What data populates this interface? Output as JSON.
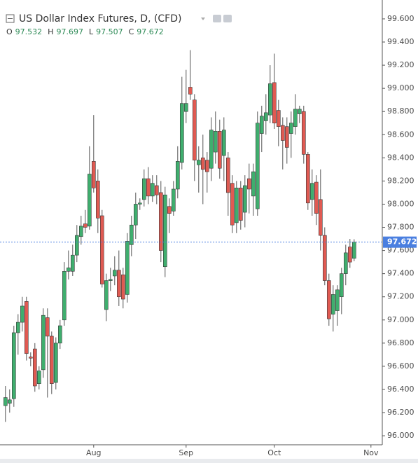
{
  "chart_data": {
    "type": "candlestick",
    "title": "US Dollar Index Futures, D, (CFD)",
    "ohlc_labels": [
      "O",
      "H",
      "L",
      "C"
    ],
    "open": [
      96.26,
      96.28,
      96.32,
      96.89,
      96.98,
      97.16,
      96.68,
      96.75,
      96.45,
      96.57,
      97.02,
      96.86,
      96.46,
      96.8,
      97.0,
      97.42,
      97.42,
      97.56,
      97.72,
      97.83,
      97.81,
      98.37,
      98.2,
      97.9,
      97.09,
      97.34,
      97.38,
      97.43,
      97.39,
      97.22,
      97.65,
      97.82,
      98.0,
      98.04,
      98.22,
      98.07,
      98.16,
      98.1,
      97.46,
      97.98,
      97.94,
      98.13,
      98.36,
      98.8,
      99.01,
      98.9,
      98.34,
      98.4,
      98.38,
      98.31,
      98.45,
      98.63,
      98.42,
      98.4,
      98.18,
      97.84,
      98.14,
      97.93,
      98.22,
      98.07,
      97.96,
      98.61,
      98.72,
      98.77,
      99.05,
      98.81,
      98.68,
      98.67,
      98.61,
      98.67,
      98.78,
      98.8,
      98.43,
      98.04,
      98.19,
      98.04,
      97.73,
      97.34,
      97.05,
      97.08,
      97.2,
      97.4,
      97.63,
      97.532
    ],
    "high": [
      96.43,
      96.4,
      96.95,
      97.05,
      97.2,
      97.2,
      96.72,
      96.8,
      96.6,
      97.1,
      97.1,
      96.9,
      96.85,
      97.0,
      97.5,
      97.6,
      97.65,
      97.82,
      97.9,
      97.95,
      98.5,
      98.77,
      98.3,
      97.95,
      97.4,
      97.45,
      97.55,
      97.6,
      97.45,
      97.75,
      97.9,
      98.1,
      98.05,
      98.3,
      98.32,
      98.25,
      98.25,
      98.2,
      98.15,
      98.05,
      98.2,
      98.5,
      99.1,
      99.16,
      99.33,
      98.95,
      98.5,
      98.6,
      98.45,
      98.75,
      98.8,
      98.73,
      98.75,
      98.45,
      98.25,
      98.2,
      98.2,
      98.25,
      98.35,
      98.35,
      98.8,
      98.85,
      98.95,
      99.2,
      99.3,
      98.9,
      98.75,
      98.75,
      98.8,
      98.95,
      98.85,
      98.85,
      98.45,
      98.3,
      98.25,
      98.3,
      97.8,
      97.4,
      97.3,
      97.3,
      97.45,
      97.65,
      97.7,
      97.697
    ],
    "low": [
      96.12,
      96.2,
      96.25,
      96.7,
      96.9,
      96.65,
      96.6,
      96.38,
      96.4,
      96.5,
      96.33,
      96.36,
      96.4,
      96.75,
      96.95,
      97.35,
      97.38,
      97.5,
      97.65,
      97.75,
      97.78,
      98.1,
      97.75,
      97.28,
      96.99,
      97.25,
      97.3,
      97.12,
      97.1,
      97.15,
      97.55,
      97.7,
      97.95,
      97.98,
      98.0,
      98.02,
      98.0,
      97.5,
      97.37,
      97.75,
      97.9,
      98.05,
      98.3,
      98.7,
      98.9,
      98.2,
      98.1,
      98.0,
      98.1,
      98.2,
      98.35,
      98.22,
      98.2,
      97.9,
      97.75,
      97.75,
      97.78,
      97.8,
      97.92,
      97.9,
      97.9,
      98.45,
      98.6,
      98.7,
      98.65,
      98.5,
      98.3,
      98.35,
      98.4,
      98.6,
      98.7,
      98.35,
      97.95,
      97.9,
      97.82,
      97.6,
      97.3,
      96.95,
      96.9,
      96.95,
      97.05,
      97.3,
      97.45,
      97.507
    ],
    "close": [
      96.33,
      96.31,
      96.89,
      96.98,
      97.12,
      96.71,
      96.67,
      96.43,
      96.56,
      97.04,
      96.86,
      96.45,
      96.8,
      96.95,
      97.42,
      97.45,
      97.56,
      97.73,
      97.81,
      97.8,
      98.26,
      98.14,
      97.88,
      97.31,
      97.34,
      97.35,
      97.43,
      97.2,
      97.18,
      97.68,
      97.82,
      98.0,
      98.01,
      98.22,
      98.07,
      98.18,
      98.08,
      97.6,
      98.08,
      97.92,
      98.13,
      98.37,
      98.87,
      98.87,
      98.95,
      98.38,
      98.38,
      98.3,
      98.28,
      98.64,
      98.63,
      98.31,
      98.64,
      98.1,
      97.82,
      98.14,
      97.86,
      98.16,
      98.13,
      98.28,
      98.7,
      98.76,
      98.79,
      99.04,
      98.7,
      98.67,
      98.55,
      98.49,
      98.7,
      98.82,
      98.82,
      98.43,
      98.01,
      98.18,
      97.92,
      97.73,
      97.34,
      97.01,
      97.22,
      97.26,
      97.4,
      97.58,
      97.5,
      97.672
    ],
    "up_color": "#3fae6e",
    "down_color": "#e05a52",
    "xlim": [
      -1.3,
      89.7
    ],
    "xticks": [
      {
        "value": 21,
        "label": "Aug"
      },
      {
        "value": 43,
        "label": "Sep"
      },
      {
        "value": 64,
        "label": "Oct"
      },
      {
        "value": 87,
        "label": "Nov"
      }
    ],
    "ylim": [
      95.922,
      99.763
    ],
    "yticks": [
      {
        "value": 96.0,
        "label": "96.000"
      },
      {
        "value": 96.2,
        "label": "96.200"
      },
      {
        "value": 96.4,
        "label": "96.400"
      },
      {
        "value": 96.6,
        "label": "96.600"
      },
      {
        "value": 96.8,
        "label": "96.800"
      },
      {
        "value": 97.0,
        "label": "97.000"
      },
      {
        "value": 97.2,
        "label": "97.200"
      },
      {
        "value": 97.4,
        "label": "97.400"
      },
      {
        "value": 97.6,
        "label": "97.600"
      },
      {
        "value": 97.8,
        "label": "97.800"
      },
      {
        "value": 98.0,
        "label": "98.000"
      },
      {
        "value": 98.2,
        "label": "98.200"
      },
      {
        "value": 98.4,
        "label": "98.400"
      },
      {
        "value": 98.6,
        "label": "98.600"
      },
      {
        "value": 98.8,
        "label": "98.800"
      },
      {
        "value": 99.0,
        "label": "99.000"
      },
      {
        "value": 99.2,
        "label": "99.200"
      },
      {
        "value": 99.4,
        "label": "99.400"
      },
      {
        "value": 99.6,
        "label": "99.600"
      }
    ],
    "price_line_color": "#4a7fe0"
  }
}
